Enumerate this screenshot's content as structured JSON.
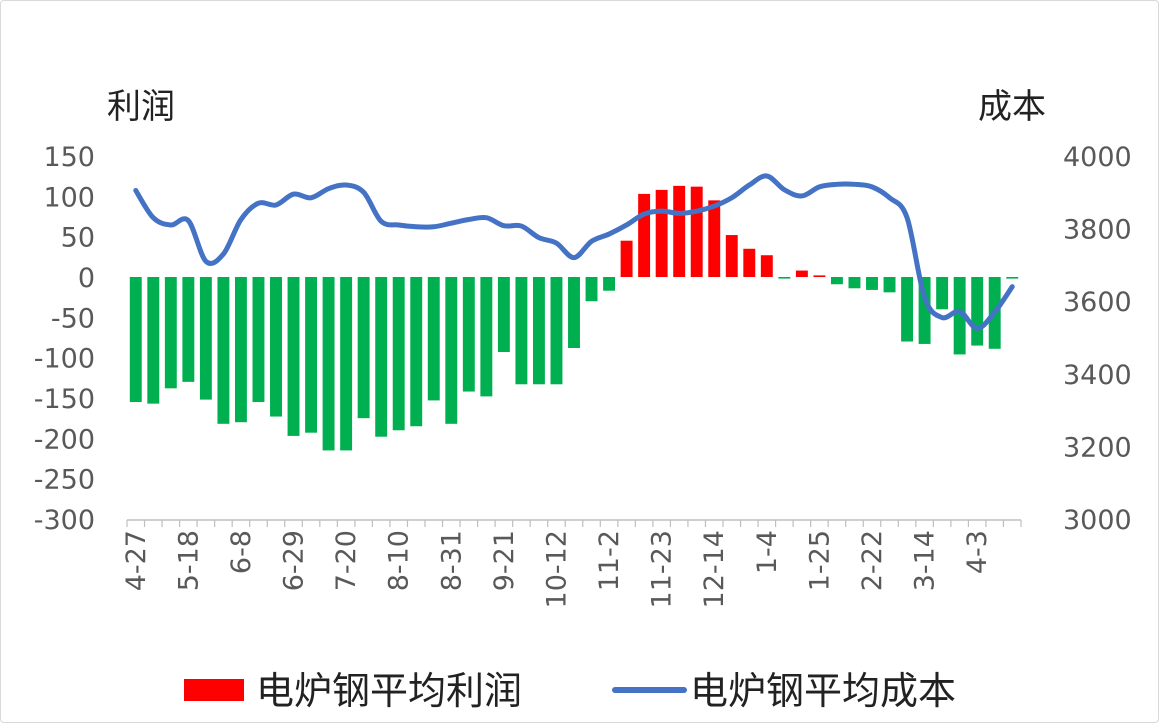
{
  "chart_data": {
    "type": "bar+line",
    "left_axis_label": "利润",
    "right_axis_label": "成本",
    "left_ylim": [
      -300,
      150
    ],
    "left_ticks": [
      150,
      100,
      50,
      0,
      -50,
      -100,
      -150,
      -200,
      -250,
      -300
    ],
    "right_ylim": [
      3000,
      4000
    ],
    "right_ticks": [
      4000,
      3800,
      3600,
      3400,
      3200,
      3000
    ],
    "x_tick_labels": [
      "4-27",
      "5-18",
      "6-8",
      "6-29",
      "7-20",
      "8-10",
      "8-31",
      "9-21",
      "10-12",
      "11-2",
      "11-23",
      "12-14",
      "1-4",
      "1-25",
      "2-22",
      "3-14",
      "4-3"
    ],
    "positive_color": "#ff0000",
    "negative_color": "#00b050",
    "line_color": "#4472c4",
    "series": [
      {
        "name": "电炉钢平均利润",
        "kind": "bar",
        "values": [
          -155,
          -157,
          -138,
          -130,
          -152,
          -182,
          -180,
          -155,
          -173,
          -197,
          -193,
          -215,
          -215,
          -175,
          -198,
          -190,
          -185,
          -153,
          -182,
          -142,
          -148,
          -93,
          -133,
          -133,
          -133,
          -88,
          -30,
          -17,
          45,
          103,
          108,
          113,
          112,
          95,
          52,
          35,
          27,
          -2,
          8,
          2,
          -9,
          -14,
          -16,
          -19,
          -80,
          -83,
          -40,
          -96,
          -85,
          -89,
          -2
        ]
      },
      {
        "name": "电炉钢平均成本",
        "kind": "line",
        "values": [
          3905,
          3830,
          3810,
          3822,
          3710,
          3730,
          3825,
          3870,
          3865,
          3895,
          3885,
          3910,
          3920,
          3900,
          3820,
          3810,
          3805,
          3805,
          3815,
          3825,
          3830,
          3808,
          3807,
          3775,
          3760,
          3720,
          3765,
          3785,
          3810,
          3840,
          3848,
          3842,
          3848,
          3862,
          3885,
          3920,
          3945,
          3907,
          3890,
          3915,
          3922,
          3922,
          3915,
          3885,
          3830,
          3610,
          3555,
          3572,
          3525,
          3570,
          3640
        ]
      }
    ],
    "legend_position": "bottom"
  }
}
